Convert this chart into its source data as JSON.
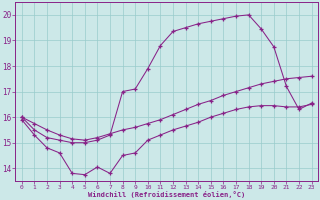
{
  "xlabel": "Windchill (Refroidissement éolien,°C)",
  "background_color": "#cce8e8",
  "grid_color": "#99cccc",
  "line_color": "#882288",
  "xlim": [
    -0.5,
    23.5
  ],
  "ylim": [
    13.5,
    20.5
  ],
  "yticks": [
    14,
    15,
    16,
    17,
    18,
    19,
    20
  ],
  "xticks": [
    0,
    1,
    2,
    3,
    4,
    5,
    6,
    7,
    8,
    9,
    10,
    11,
    12,
    13,
    14,
    15,
    16,
    17,
    18,
    19,
    20,
    21,
    22,
    23
  ],
  "line1_x": [
    0,
    1,
    2,
    3,
    4,
    5,
    6,
    7,
    8,
    9,
    10,
    11,
    12,
    13,
    14,
    15,
    16,
    17,
    18,
    19,
    20,
    21,
    22,
    23
  ],
  "line1_y": [
    15.9,
    15.3,
    14.8,
    14.6,
    13.8,
    13.75,
    14.05,
    13.8,
    14.5,
    14.6,
    15.1,
    15.3,
    15.5,
    15.65,
    15.8,
    16.0,
    16.15,
    16.3,
    16.4,
    16.45,
    16.45,
    16.4,
    16.4,
    16.5
  ],
  "line2_x": [
    0,
    1,
    2,
    3,
    4,
    5,
    6,
    7,
    8,
    9,
    10,
    11,
    12,
    13,
    14,
    15,
    16,
    17,
    18,
    19,
    20,
    21,
    22,
    23
  ],
  "line2_y": [
    16.0,
    15.75,
    15.5,
    15.3,
    15.15,
    15.1,
    15.2,
    15.35,
    15.5,
    15.6,
    15.75,
    15.9,
    16.1,
    16.3,
    16.5,
    16.65,
    16.85,
    17.0,
    17.15,
    17.3,
    17.4,
    17.5,
    17.55,
    17.6
  ],
  "line3_x": [
    0,
    1,
    2,
    3,
    4,
    5,
    6,
    7,
    8,
    9,
    10,
    11,
    12,
    13,
    14,
    15,
    16,
    17,
    18,
    19,
    20,
    21,
    22,
    23
  ],
  "line3_y": [
    16.0,
    15.5,
    15.2,
    15.1,
    15.0,
    15.0,
    15.1,
    15.3,
    17.0,
    17.1,
    17.9,
    18.8,
    19.35,
    19.5,
    19.65,
    19.75,
    19.85,
    19.95,
    20.0,
    19.45,
    18.75,
    17.2,
    16.3,
    16.55
  ]
}
